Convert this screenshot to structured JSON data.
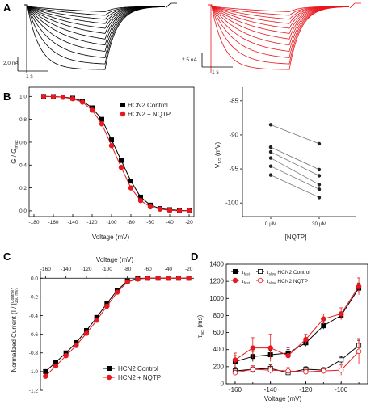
{
  "panel_labels": {
    "a": "A",
    "b": "B",
    "c": "C",
    "d": "D"
  },
  "colors": {
    "control": "#000000",
    "nqtp": "#e8181e",
    "paired": "#777777"
  },
  "chart_data": [
    {
      "id": "A",
      "type": "line",
      "description_scale_left": {
        "current": "2.0 nA",
        "time": "1 s"
      },
      "description_scale_right": {
        "current": "2.5 nA",
        "time": "1 s"
      },
      "traces_per_panel": 12
    },
    {
      "id": "B-left",
      "type": "line",
      "xlabel": "Voltage (mV)",
      "ylabel": "G / G",
      "ylabel_sub": "max",
      "xlim": [
        -185,
        -15
      ],
      "ylim": [
        -0.05,
        1.08
      ],
      "xticks": [
        -180,
        -160,
        -140,
        -120,
        -100,
        -80,
        -60,
        -40,
        -20
      ],
      "yticks": [
        0.0,
        0.2,
        0.4,
        0.6,
        0.8,
        1.0
      ],
      "legend": "top-right",
      "series": [
        {
          "name": "HCN2 Control",
          "color": "#000000",
          "marker": "square",
          "x": [
            -170,
            -160,
            -150,
            -140,
            -130,
            -120,
            -110,
            -100,
            -90,
            -80,
            -70,
            -60,
            -50,
            -40,
            -30,
            -20
          ],
          "y": [
            1.0,
            0.999,
            0.995,
            0.985,
            0.96,
            0.9,
            0.8,
            0.62,
            0.44,
            0.26,
            0.12,
            0.05,
            0.02,
            0.01,
            0.005,
            0.0
          ]
        },
        {
          "name": "HCN2 + NQTP",
          "color": "#e8181e",
          "marker": "circle",
          "x": [
            -170,
            -160,
            -150,
            -140,
            -130,
            -120,
            -110,
            -100,
            -90,
            -80,
            -70,
            -60,
            -50,
            -40,
            -30,
            -20
          ],
          "y": [
            1.0,
            0.998,
            0.993,
            0.98,
            0.95,
            0.88,
            0.76,
            0.57,
            0.38,
            0.2,
            0.09,
            0.035,
            0.015,
            0.005,
            0.0,
            0.0
          ]
        }
      ]
    },
    {
      "id": "B-right",
      "type": "scatter",
      "ylabel": "V",
      "ylabel_sub": "1/2",
      "ylabel_unit": "(mV)",
      "xlabel": "[NQTP]",
      "categories": [
        "0 µM",
        "30 µM"
      ],
      "ylim": [
        -102,
        -83
      ],
      "yticks": [
        -85,
        -90,
        -95,
        -100
      ],
      "pairs": [
        [
          -88.5,
          -91.3
        ],
        [
          -91.8,
          -95.1
        ],
        [
          -92.5,
          -96.0
        ],
        [
          -93.4,
          -97.3
        ],
        [
          -94.6,
          -98.0
        ],
        [
          -95.9,
          -99.2
        ]
      ]
    },
    {
      "id": "C",
      "type": "line",
      "xlabel": "Voltage (mV)",
      "xlabel_position": "top",
      "ylabel": "Normalized Current (I / I",
      "ylabel_sub": "Control",
      "ylabel_sub2": "-160 mV",
      "ylabel_end": ")",
      "xlim": [
        -165,
        -15
      ],
      "ylim": [
        -1.2,
        0.08
      ],
      "xticks": [
        -160,
        -140,
        -120,
        -100,
        -80,
        -60,
        -40,
        -20
      ],
      "yticks": [
        0.0,
        -0.2,
        -0.4,
        -0.6,
        -0.8,
        -1.0,
        -1.2
      ],
      "legend": "bottom-right",
      "series": [
        {
          "name": "HCN2 Control",
          "color": "#000000",
          "marker": "square",
          "x": [
            -160,
            -150,
            -140,
            -130,
            -120,
            -110,
            -100,
            -90,
            -80,
            -70,
            -60,
            -50,
            -40,
            -30,
            -20
          ],
          "y": [
            -1.0,
            -0.9,
            -0.8,
            -0.69,
            -0.56,
            -0.42,
            -0.27,
            -0.13,
            -0.03,
            -0.005,
            0.0,
            0.0,
            0.0,
            0.0,
            0.0
          ]
        },
        {
          "name": "HCN2 + NQTP",
          "color": "#e8181e",
          "marker": "circle",
          "x": [
            -160,
            -150,
            -140,
            -130,
            -120,
            -110,
            -100,
            -90,
            -80,
            -70,
            -60,
            -50,
            -40,
            -30,
            -20
          ],
          "y": [
            -1.05,
            -0.94,
            -0.83,
            -0.72,
            -0.59,
            -0.45,
            -0.3,
            -0.15,
            -0.04,
            -0.01,
            0.0,
            0.0,
            0.0,
            0.0,
            0.0
          ]
        }
      ]
    },
    {
      "id": "D",
      "type": "line",
      "xlabel": "Voltage (mV)",
      "ylabel": "τ",
      "ylabel_sub": "act",
      "ylabel_unit": "(ms)",
      "xlim": [
        -165,
        -85
      ],
      "ylim": [
        0,
        1400
      ],
      "xticks": [
        -160,
        -140,
        -120,
        -100
      ],
      "yticks": [
        0,
        200,
        400,
        600,
        800,
        1000,
        1200,
        1400
      ],
      "legend": "top-left",
      "legend_rows": [
        {
          "fast": "τ",
          "fast_sub": "fast",
          "slow": "τ",
          "slow_sub": "slow",
          "label": "HCN2 Control",
          "color": "#000000"
        },
        {
          "fast": "τ",
          "fast_sub": "fast",
          "slow": "τ",
          "slow_sub": "slow",
          "label": "HCN2 NQTP",
          "color": "#e8181e"
        }
      ],
      "series": [
        {
          "name": "control-slow",
          "color": "#000000",
          "filled": true,
          "x": [
            -160,
            -150,
            -140,
            -130,
            -120,
            -110,
            -100,
            -90
          ],
          "y": [
            260,
            320,
            340,
            360,
            480,
            680,
            800,
            1120
          ],
          "err": [
            70,
            60,
            50,
            40,
            40,
            40,
            40,
            60
          ]
        },
        {
          "name": "nqtp-slow",
          "color": "#e8181e",
          "filled": true,
          "x": [
            -160,
            -150,
            -140,
            -130,
            -120,
            -110,
            -100,
            -90
          ],
          "y": [
            280,
            420,
            420,
            330,
            520,
            760,
            820,
            1140
          ],
          "err": [
            80,
            120,
            160,
            90,
            60,
            60,
            70,
            100
          ]
        },
        {
          "name": "control-fast",
          "color": "#000000",
          "filled": false,
          "x": [
            -160,
            -150,
            -140,
            -130,
            -120,
            -110,
            -100,
            -90
          ],
          "y": [
            150,
            170,
            180,
            130,
            170,
            160,
            280,
            450
          ],
          "err": [
            40,
            40,
            40,
            30,
            30,
            30,
            40,
            60
          ]
        },
        {
          "name": "nqtp-fast",
          "color": "#e8181e",
          "filled": false,
          "x": [
            -160,
            -150,
            -140,
            -130,
            -120,
            -110,
            -100,
            -90
          ],
          "y": [
            130,
            170,
            160,
            150,
            140,
            150,
            160,
            380
          ],
          "err": [
            30,
            40,
            40,
            40,
            30,
            30,
            60,
            150
          ]
        }
      ]
    }
  ]
}
